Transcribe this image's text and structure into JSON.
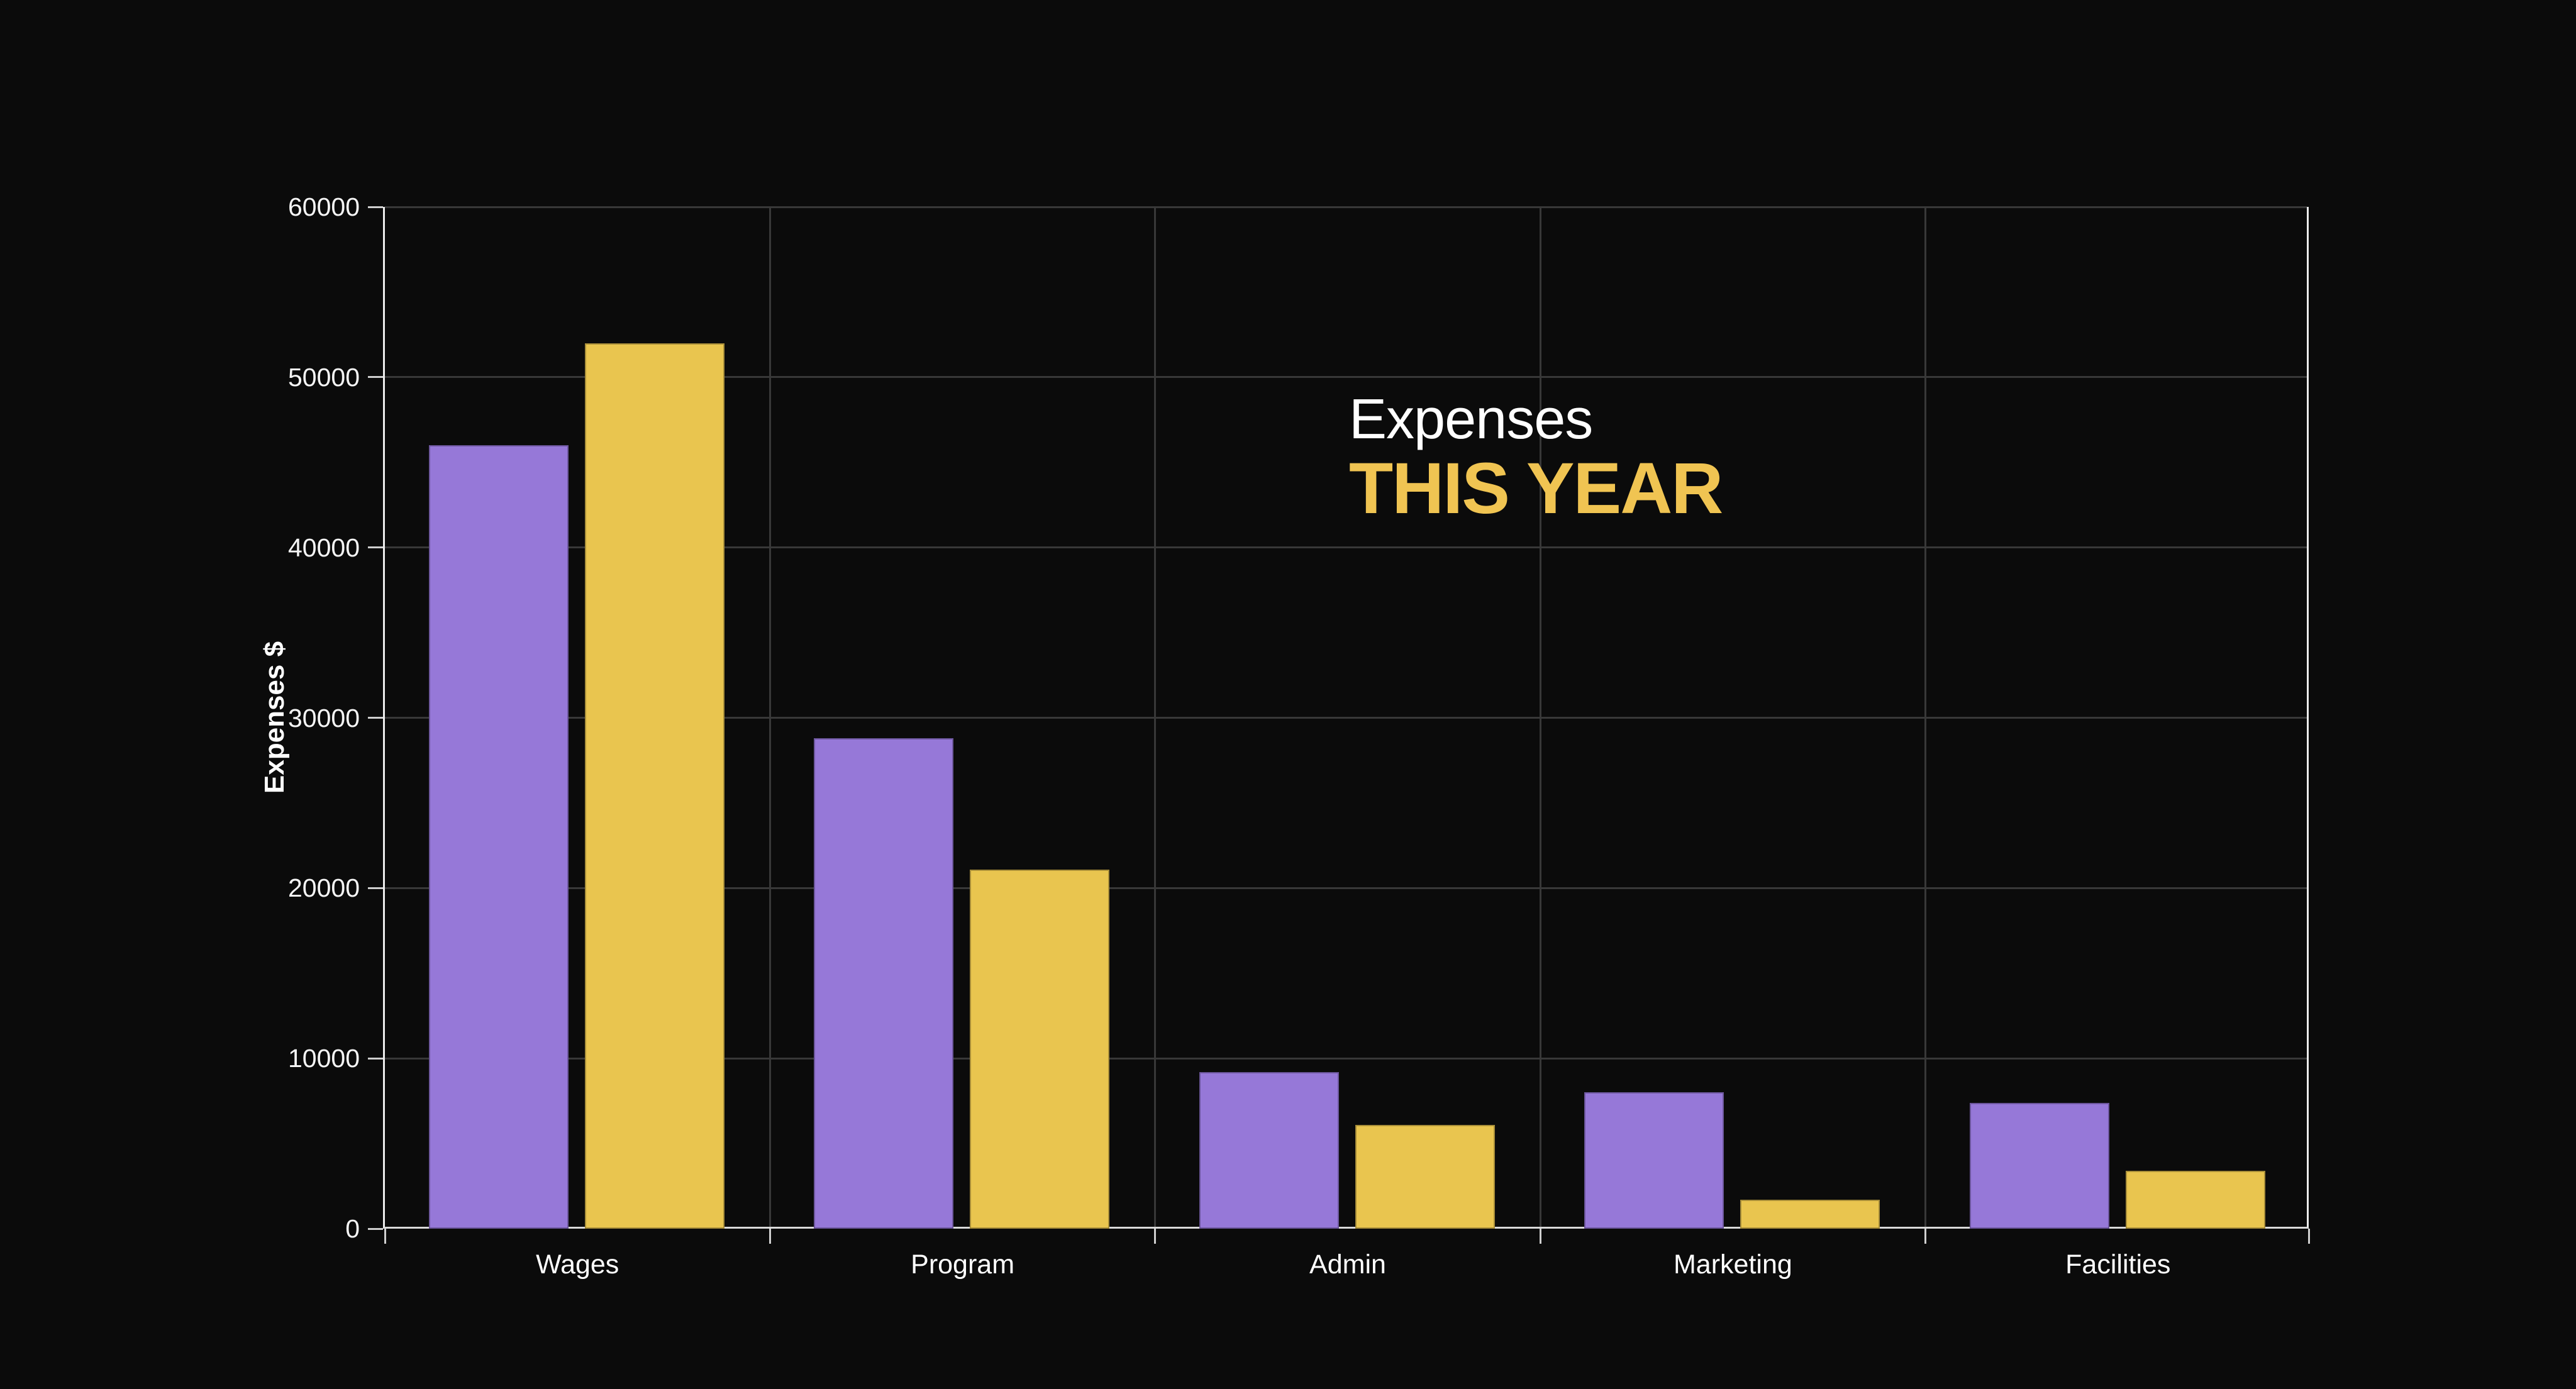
{
  "title": {
    "line1": "Expenses",
    "line2": "THIS YEAR"
  },
  "colors": {
    "background": "#0b0b0b",
    "gridline": "#383838",
    "axis_line": "#ececec",
    "tick": "#cfcfcf",
    "label_text": "#ffffff",
    "title_white": "#ffffff",
    "title_gold": "#f0c452",
    "bar_purple": "#9678d8",
    "bar_gold": "#e9c54f"
  },
  "chart_data": {
    "type": "bar",
    "title": "Expenses THIS YEAR",
    "categories": [
      "Wages",
      "Program",
      "Admin",
      "Marketing",
      "Facilities"
    ],
    "series": [
      {
        "name": "series-1-purple",
        "color": "#9678d8",
        "values": [
          46000,
          28800,
          9200,
          8000,
          7400
        ]
      },
      {
        "name": "series-2-gold",
        "color": "#e9c54f",
        "values": [
          52000,
          21100,
          6100,
          1700,
          3400
        ]
      }
    ],
    "xlabel": "",
    "ylabel": "Expenses $",
    "ylim": [
      0,
      60000
    ],
    "yticks": [
      0,
      10000,
      20000,
      30000,
      40000,
      50000,
      60000
    ],
    "grid": true,
    "legend_position": "none"
  }
}
